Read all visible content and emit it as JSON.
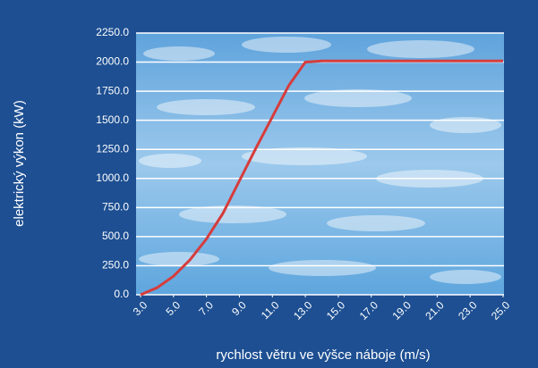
{
  "chart_data": {
    "type": "line",
    "x_label": "rychlost větru ve výšce náboje (m/s)",
    "y_label": "elektrický výkon (kW)",
    "x": [
      3,
      4,
      5,
      6,
      7,
      8,
      9,
      10,
      11,
      12,
      13,
      14,
      15,
      17,
      19,
      21,
      23,
      25
    ],
    "values": [
      0,
      60,
      160,
      300,
      480,
      700,
      980,
      1260,
      1530,
      1800,
      2000,
      2010,
      2010,
      2010,
      2010,
      2010,
      2010,
      2010
    ],
    "color": "#d63c3c",
    "xlim": [
      3,
      25
    ],
    "xticks": [
      {
        "value": 3,
        "label": "3.0"
      },
      {
        "value": 5,
        "label": "5.0"
      },
      {
        "value": 7,
        "label": "7.0"
      },
      {
        "value": 9,
        "label": "9.0"
      },
      {
        "value": 11,
        "label": "11.0"
      },
      {
        "value": 13,
        "label": "13.0"
      },
      {
        "value": 15,
        "label": "15.0"
      },
      {
        "value": 17,
        "label": "17.0"
      },
      {
        "value": 19,
        "label": "19.0"
      },
      {
        "value": 21,
        "label": "21.0"
      },
      {
        "value": 23,
        "label": "23.0"
      },
      {
        "value": 25,
        "label": "25.0"
      }
    ],
    "ylim": [
      0,
      2250
    ],
    "yticks": [
      {
        "value": 0,
        "label": "0.0"
      },
      {
        "value": 250,
        "label": "250.0"
      },
      {
        "value": 500,
        "label": "500.0"
      },
      {
        "value": 750,
        "label": "750.0"
      },
      {
        "value": 1000,
        "label": "1000.0"
      },
      {
        "value": 1250,
        "label": "1250.0"
      },
      {
        "value": 1500,
        "label": "1500.0"
      },
      {
        "value": 1750,
        "label": "1750.0"
      },
      {
        "value": 2000,
        "label": "2000.0"
      },
      {
        "value": 2250,
        "label": "2250.0"
      }
    ],
    "grid": true
  }
}
